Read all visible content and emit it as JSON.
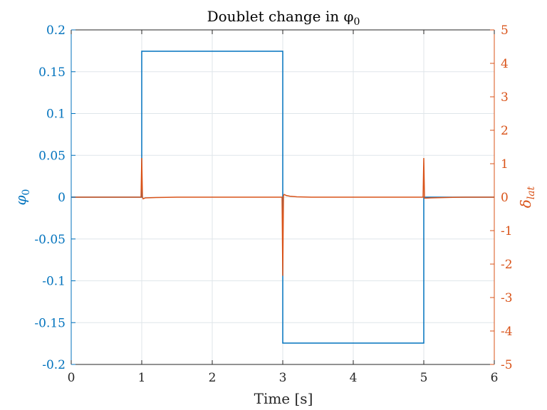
{
  "chart_data": {
    "type": "line",
    "title": "Doublet change in φ",
    "title_subscript": "0",
    "xlabel": "Time [s]",
    "ylabel_left": "φ",
    "ylabel_left_subscript": "0",
    "ylabel_right": "δ",
    "ylabel_right_subscript": "lat",
    "xlim": [
      0,
      6
    ],
    "ylim_left": [
      -0.2,
      0.2
    ],
    "ylim_right": [
      -5,
      5
    ],
    "xticks": [
      0,
      1,
      2,
      3,
      4,
      5,
      6
    ],
    "xtick_labels": [
      "0",
      "1",
      "2",
      "3",
      "4",
      "5",
      "6"
    ],
    "yticks_left": [
      -0.2,
      -0.15,
      -0.1,
      -0.05,
      0,
      0.05,
      0.1,
      0.15,
      0.2
    ],
    "ytick_labels_left": [
      "-0.2",
      "-0.15",
      "-0.1",
      "-0.05",
      "0",
      "0.05",
      "0.1",
      "0.15",
      "0.2"
    ],
    "yticks_right": [
      -5,
      -4,
      -3,
      -2,
      -1,
      0,
      1,
      2,
      3,
      4,
      5
    ],
    "ytick_labels_right": [
      "-5",
      "-4",
      "-3",
      "-2",
      "-1",
      "0",
      "1",
      "2",
      "3",
      "4",
      "5"
    ],
    "grid": true,
    "colors": {
      "left": "#0072BD",
      "right": "#D95319"
    },
    "series": [
      {
        "axis": "left",
        "x": [
          0,
          1.0,
          1.0,
          3.0,
          3.0,
          5.0,
          5.0,
          6.0
        ],
        "y": [
          0,
          0,
          0.1745,
          0.1745,
          -0.1745,
          -0.1745,
          0,
          0
        ]
      },
      {
        "axis": "right",
        "x": [
          0,
          0.99,
          1.0,
          1.01,
          1.02,
          1.05,
          1.2,
          1.5,
          2.0,
          2.99,
          3.0,
          3.01,
          3.02,
          3.05,
          3.1,
          3.2,
          3.4,
          4.0,
          4.99,
          5.0,
          5.01,
          5.03,
          5.1,
          5.3,
          5.6,
          6.0
        ],
        "y": [
          0,
          0,
          1.17,
          0.0,
          -0.05,
          -0.02,
          -0.01,
          0,
          0,
          0,
          -2.35,
          0.05,
          0.08,
          0.05,
          0.03,
          0.01,
          0,
          0,
          0,
          1.17,
          -0.03,
          -0.03,
          -0.02,
          -0.01,
          0,
          0
        ]
      }
    ]
  }
}
